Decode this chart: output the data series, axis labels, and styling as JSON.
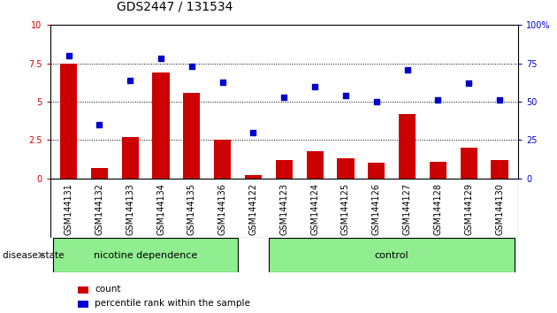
{
  "title": "GDS2447 / 131534",
  "categories": [
    "GSM144131",
    "GSM144132",
    "GSM144133",
    "GSM144134",
    "GSM144135",
    "GSM144136",
    "GSM144122",
    "GSM144123",
    "GSM144124",
    "GSM144125",
    "GSM144126",
    "GSM144127",
    "GSM144128",
    "GSM144129",
    "GSM144130"
  ],
  "bar_values": [
    7.5,
    0.7,
    2.7,
    6.9,
    5.6,
    2.5,
    0.2,
    1.2,
    1.8,
    1.3,
    1.0,
    4.2,
    1.1,
    2.0,
    1.2
  ],
  "scatter_values": [
    80,
    35,
    64,
    78,
    73,
    63,
    30,
    53,
    60,
    54,
    50,
    71,
    51,
    62,
    51
  ],
  "bar_color": "#cc0000",
  "scatter_color": "#0000cc",
  "ylim_left": [
    0,
    10
  ],
  "ylim_right": [
    0,
    100
  ],
  "yticks_left": [
    0,
    2.5,
    5.0,
    7.5,
    10
  ],
  "yticks_right": [
    0,
    25,
    50,
    75,
    100
  ],
  "ytick_labels_left": [
    "0",
    "2.5",
    "5",
    "7.5",
    "10"
  ],
  "ytick_labels_right": [
    "0",
    "25",
    "50",
    "75",
    "100%"
  ],
  "hlines": [
    2.5,
    5.0,
    7.5
  ],
  "nicotine_count": 6,
  "control_count": 9,
  "nicotine_label": "nicotine dependence",
  "control_label": "control",
  "disease_state_label": "disease state",
  "legend_bar_label": "count",
  "legend_scatter_label": "percentile rank within the sample",
  "plot_bg_color": "#ffffff",
  "label_band_color": "#c8c8c8",
  "nicotine_band_color": "#90ee90",
  "control_band_color": "#90ee90",
  "title_fontsize": 10,
  "tick_fontsize": 7,
  "band_fontsize": 8,
  "legend_fontsize": 7.5
}
